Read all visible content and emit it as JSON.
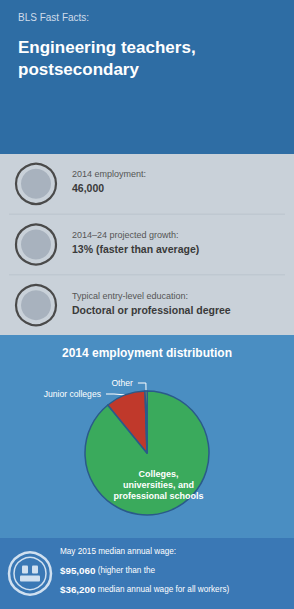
{
  "chart_data": {
    "type": "pie",
    "title": "2014 employment distribution",
    "categories": [
      "Colleges,\nuniversities, and\nprofessional schools",
      "Junior colleges",
      "Other"
    ],
    "values": [
      89.1,
      10.4,
      0.5
    ],
    "colors": [
      "#3aaa5c",
      "#c0392b",
      "#e8c234"
    ],
    "annotations": {
      "header": [
        "BLS Fast Facts:",
        "Engineering teachers,\npostsecondary"
      ],
      "stats": [
        {
          "label": "2014 employment:",
          "value": "46,000"
        },
        {
          "label": "2014–24 projected growth:",
          "value": "13% (faster than average)"
        },
        {
          "label": "Typical entry-level education:",
          "value": "Doctoral or professional degree"
        }
      ],
      "wage": [
        [
          "May 2015 median annual wage:"
        ],
        [
          "$95,060",
          " (higher than the "
        ],
        [
          "$36,200",
          " median annual wage for all workers)"
        ]
      ]
    }
  }
}
